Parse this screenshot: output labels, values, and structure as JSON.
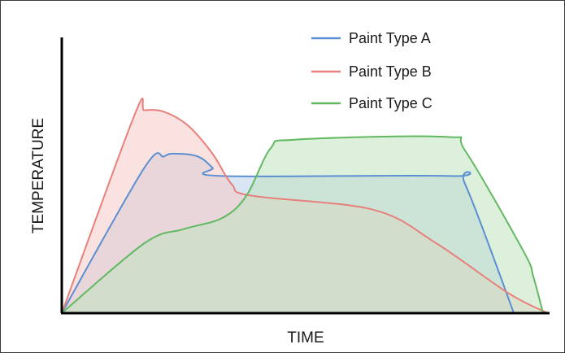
{
  "chart_data": {
    "type": "area",
    "title": "",
    "xlabel": "TIME",
    "ylabel": "TEMPERATURE",
    "xlim": [
      0,
      100
    ],
    "ylim": [
      0,
      100
    ],
    "grid": false,
    "legend_position": "top-right",
    "series": [
      {
        "name": "Paint Type A",
        "color": "#5b8fd1",
        "fill": "#b9cfe9",
        "points": [
          [
            0,
            0
          ],
          [
            17,
            52
          ],
          [
            21,
            56
          ],
          [
            23,
            57
          ],
          [
            28,
            56
          ],
          [
            31,
            52
          ],
          [
            33,
            49
          ],
          [
            80,
            49
          ],
          [
            83,
            46
          ],
          [
            93,
            0
          ]
        ]
      },
      {
        "name": "Paint Type B",
        "color": "#e8807c",
        "fill": "#f6cac6",
        "points": [
          [
            0,
            0
          ],
          [
            15,
            71
          ],
          [
            17,
            72.5
          ],
          [
            21,
            72
          ],
          [
            26,
            67
          ],
          [
            31,
            57
          ],
          [
            35,
            46
          ],
          [
            39,
            42
          ],
          [
            64,
            37
          ],
          [
            77,
            25
          ],
          [
            92,
            7
          ],
          [
            100,
            0
          ]
        ]
      },
      {
        "name": "Paint Type C",
        "color": "#62b962",
        "fill": "#bfe3c0",
        "points": [
          [
            0,
            0
          ],
          [
            17,
            25
          ],
          [
            25,
            30
          ],
          [
            33,
            34
          ],
          [
            38,
            42
          ],
          [
            43,
            59
          ],
          [
            48,
            62
          ],
          [
            79,
            63
          ],
          [
            83,
            58
          ],
          [
            95,
            22
          ],
          [
            97,
            13
          ],
          [
            99,
            0
          ]
        ]
      }
    ]
  }
}
